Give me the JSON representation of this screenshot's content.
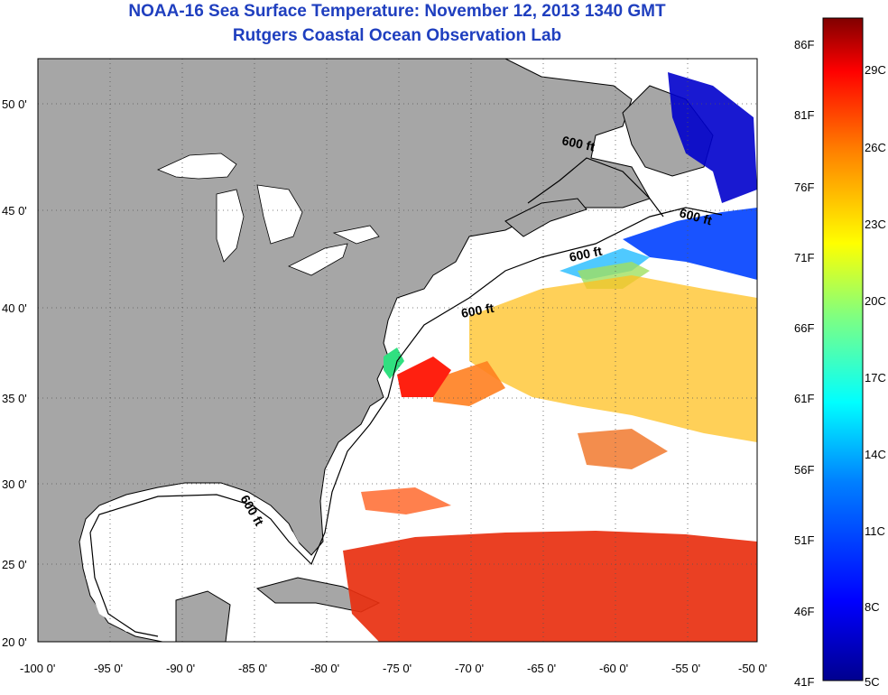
{
  "title": "NOAA-16 Sea Surface Temperature:  November 12, 2013 1340 GMT",
  "subtitle": "Rutgers Coastal Ocean Observation Lab",
  "map": {
    "lon_range": [
      -100,
      -50
    ],
    "lat_range": [
      20,
      52.5
    ],
    "lon_ticks": [
      "-100 0'",
      "-95 0'",
      "-90 0'",
      "-85 0'",
      "-80 0'",
      "-75 0'",
      "-70 0'",
      "-65 0'",
      "-60 0'",
      "-55 0'",
      "-50 0'"
    ],
    "lat_ticks": [
      "50 0'",
      "45 0'",
      "40 0'",
      "35 0'",
      "30 0'",
      "25 0'",
      "20 0'"
    ],
    "contour_labels": [
      "600 ft",
      "600 ft",
      "600 ft",
      "600 ft",
      "600 ft"
    ],
    "land_color": "#a6a6a6",
    "ocean_color": "#ffffff"
  },
  "colorbar": {
    "min_f": 41,
    "max_f": 86,
    "f_labels": [
      "86F",
      "81F",
      "76F",
      "71F",
      "66F",
      "61F",
      "56F",
      "51F",
      "46F",
      "41F"
    ],
    "c_labels": [
      "29C",
      "26C",
      "23C",
      "20C",
      "17C",
      "14C",
      "11C",
      "8C",
      "5C"
    ],
    "colors": [
      "#00008f",
      "#0000ff",
      "#0080ff",
      "#00ffff",
      "#80ff80",
      "#ffff00",
      "#ff8000",
      "#ff0000",
      "#800000"
    ]
  }
}
